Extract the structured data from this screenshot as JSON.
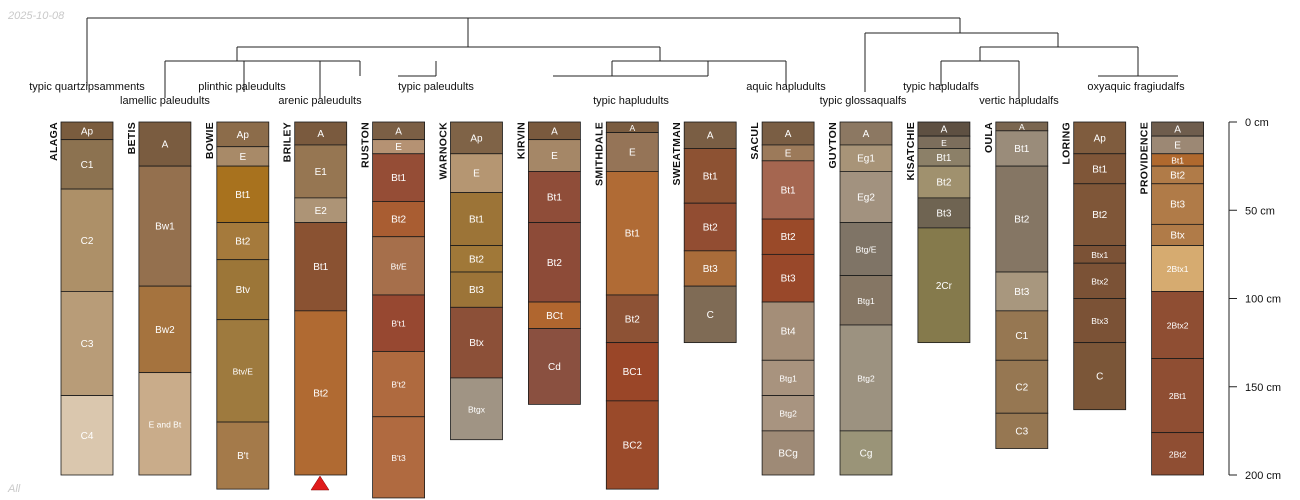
{
  "date_stamp": "2025-10-08",
  "corner_label": "All",
  "axis": {
    "ticks": [
      0,
      50,
      100,
      150,
      200
    ],
    "unit": "cm",
    "max_depth": 200
  },
  "groups": [
    {
      "label": "typic quartzipsamments"
    },
    {
      "label": "lamellic paleudults"
    },
    {
      "label": "plinthic paleudults"
    },
    {
      "label": "arenic paleudults"
    },
    {
      "label": "typic paleudults"
    },
    {
      "label": "typic hapludults"
    },
    {
      "label": "aquic hapludults"
    },
    {
      "label": "typic glossaqualfs"
    },
    {
      "label": "typic hapludalfs"
    },
    {
      "label": "vertic hapludalfs"
    },
    {
      "label": "oxyaquic fragiudalfs"
    }
  ],
  "profiles": [
    {
      "name": "ALAGA",
      "horizons": [
        {
          "name": "Ap",
          "top": 0,
          "bottom": 10,
          "color": "#7a5c3e"
        },
        {
          "name": "C1",
          "top": 10,
          "bottom": 38,
          "color": "#8c7250"
        },
        {
          "name": "C2",
          "top": 38,
          "bottom": 96,
          "color": "#ad9068"
        },
        {
          "name": "C3",
          "top": 96,
          "bottom": 155,
          "color": "#b89c78"
        },
        {
          "name": "C4",
          "top": 155,
          "bottom": 200,
          "color": "#dac7ae"
        }
      ]
    },
    {
      "name": "BETIS",
      "horizons": [
        {
          "name": "A",
          "top": 0,
          "bottom": 25,
          "color": "#7a5c40"
        },
        {
          "name": "Bw1",
          "top": 25,
          "bottom": 93,
          "color": "#94704e"
        },
        {
          "name": "Bw2",
          "top": 93,
          "bottom": 142,
          "color": "#a5733e"
        },
        {
          "name": "E and Bt",
          "top": 142,
          "bottom": 200,
          "color": "#c9ac8a"
        }
      ]
    },
    {
      "name": "BOWIE",
      "horizons": [
        {
          "name": "Ap",
          "top": 0,
          "bottom": 14,
          "color": "#8c6c4a"
        },
        {
          "name": "E",
          "top": 14,
          "bottom": 25,
          "color": "#a88a68"
        },
        {
          "name": "Bt1",
          "top": 25,
          "bottom": 57,
          "color": "#a8721e"
        },
        {
          "name": "Bt2",
          "top": 57,
          "bottom": 78,
          "color": "#a57a3c"
        },
        {
          "name": "Btv",
          "top": 78,
          "bottom": 112,
          "color": "#9c7638"
        },
        {
          "name": "Btv/E",
          "top": 112,
          "bottom": 170,
          "color": "#9e7a3e"
        },
        {
          "name": "B't",
          "top": 170,
          "bottom": 208,
          "color": "#a47a4a"
        }
      ]
    },
    {
      "name": "BRILEY",
      "horizons": [
        {
          "name": "A",
          "top": 0,
          "bottom": 13,
          "color": "#7a5a3e"
        },
        {
          "name": "E1",
          "top": 13,
          "bottom": 43,
          "color": "#967652"
        },
        {
          "name": "E2",
          "top": 43,
          "bottom": 57,
          "color": "#ad9476"
        },
        {
          "name": "Bt1",
          "top": 57,
          "bottom": 107,
          "color": "#8a5232"
        },
        {
          "name": "Bt2",
          "top": 107,
          "bottom": 200,
          "color": "#b06a32"
        }
      ]
    },
    {
      "name": "RUSTON",
      "horizons": [
        {
          "name": "A",
          "top": 0,
          "bottom": 10,
          "color": "#7b5f45"
        },
        {
          "name": "E",
          "top": 10,
          "bottom": 18,
          "color": "#b59273"
        },
        {
          "name": "Bt1",
          "top": 18,
          "bottom": 45,
          "color": "#954d36"
        },
        {
          "name": "Bt2",
          "top": 45,
          "bottom": 65,
          "color": "#a95d32"
        },
        {
          "name": "Bt/E",
          "top": 65,
          "bottom": 98,
          "color": "#a66f4b"
        },
        {
          "name": "B't1",
          "top": 98,
          "bottom": 130,
          "color": "#974831"
        },
        {
          "name": "B't2",
          "top": 130,
          "bottom": 167,
          "color": "#af6a3f"
        },
        {
          "name": "B't3",
          "top": 167,
          "bottom": 213,
          "color": "#b06a40"
        }
      ]
    },
    {
      "name": "WARNOCK",
      "horizons": [
        {
          "name": "Ap",
          "top": 0,
          "bottom": 18,
          "color": "#7f6347"
        },
        {
          "name": "E",
          "top": 18,
          "bottom": 40,
          "color": "#b59672"
        },
        {
          "name": "Bt1",
          "top": 40,
          "bottom": 70,
          "color": "#9c7437"
        },
        {
          "name": "Bt2",
          "top": 70,
          "bottom": 85,
          "color": "#a07838"
        },
        {
          "name": "Bt3",
          "top": 85,
          "bottom": 105,
          "color": "#9c7438"
        },
        {
          "name": "Btx",
          "top": 105,
          "bottom": 145,
          "color": "#8c5038"
        },
        {
          "name": "Btgx",
          "top": 145,
          "bottom": 180,
          "color": "#a09484"
        }
      ]
    },
    {
      "name": "KIRVIN",
      "horizons": [
        {
          "name": "A",
          "top": 0,
          "bottom": 10,
          "color": "#7a5a3e"
        },
        {
          "name": "E",
          "top": 10,
          "bottom": 28,
          "color": "#a58767"
        },
        {
          "name": "Bt1",
          "top": 28,
          "bottom": 57,
          "color": "#8f4d39"
        },
        {
          "name": "Bt2",
          "top": 57,
          "bottom": 102,
          "color": "#8d4b38"
        },
        {
          "name": "BCt",
          "top": 102,
          "bottom": 117,
          "color": "#b0662f"
        },
        {
          "name": "Cd",
          "top": 117,
          "bottom": 160,
          "color": "#8a5040"
        }
      ]
    },
    {
      "name": "SMITHDALE",
      "horizons": [
        {
          "name": "A",
          "top": 0,
          "bottom": 6,
          "color": "#7a5c40"
        },
        {
          "name": "E",
          "top": 6,
          "bottom": 28,
          "color": "#957457"
        },
        {
          "name": "Bt1",
          "top": 28,
          "bottom": 98,
          "color": "#b06b35"
        },
        {
          "name": "Bt2",
          "top": 98,
          "bottom": 125,
          "color": "#8d5235"
        },
        {
          "name": "BC1",
          "top": 125,
          "bottom": 158,
          "color": "#9a4628"
        },
        {
          "name": "BC2",
          "top": 158,
          "bottom": 208,
          "color": "#9a4a2a"
        }
      ]
    },
    {
      "name": "SWEATMAN",
      "horizons": [
        {
          "name": "A",
          "top": 0,
          "bottom": 15,
          "color": "#7a5e44"
        },
        {
          "name": "Bt1",
          "top": 15,
          "bottom": 46,
          "color": "#8d5233"
        },
        {
          "name": "Bt2",
          "top": 46,
          "bottom": 73,
          "color": "#924d32"
        },
        {
          "name": "Bt3",
          "top": 73,
          "bottom": 93,
          "color": "#a96c3a"
        },
        {
          "name": "C",
          "top": 93,
          "bottom": 125,
          "color": "#7f6b55"
        }
      ]
    },
    {
      "name": "SACUL",
      "horizons": [
        {
          "name": "A",
          "top": 0,
          "bottom": 13,
          "color": "#7a5e44"
        },
        {
          "name": "E",
          "top": 13,
          "bottom": 22,
          "color": "#9c7a5a"
        },
        {
          "name": "Bt1",
          "top": 22,
          "bottom": 55,
          "color": "#a56650"
        },
        {
          "name": "Bt2",
          "top": 55,
          "bottom": 75,
          "color": "#9a4a29"
        },
        {
          "name": "Bt3",
          "top": 75,
          "bottom": 102,
          "color": "#99482a"
        },
        {
          "name": "Bt4",
          "top": 102,
          "bottom": 135,
          "color": "#a48e78"
        },
        {
          "name": "Btg1",
          "top": 135,
          "bottom": 155,
          "color": "#a8937e"
        },
        {
          "name": "Btg2",
          "top": 155,
          "bottom": 175,
          "color": "#a89480"
        },
        {
          "name": "BCg",
          "top": 175,
          "bottom": 200,
          "color": "#9e8a76"
        }
      ]
    },
    {
      "name": "GUYTON",
      "horizons": [
        {
          "name": "A",
          "top": 0,
          "bottom": 13,
          "color": "#8c7862"
        },
        {
          "name": "Eg1",
          "top": 13,
          "bottom": 28,
          "color": "#a89478"
        },
        {
          "name": "Eg2",
          "top": 28,
          "bottom": 57,
          "color": "#a2927f"
        },
        {
          "name": "Btg/E",
          "top": 57,
          "bottom": 87,
          "color": "#7f7466"
        },
        {
          "name": "Btg1",
          "top": 87,
          "bottom": 115,
          "color": "#857664"
        },
        {
          "name": "Btg2",
          "top": 115,
          "bottom": 175,
          "color": "#9c9280"
        },
        {
          "name": "Cg",
          "top": 175,
          "bottom": 200,
          "color": "#9a9478"
        }
      ]
    },
    {
      "name": "KISATCHIE",
      "horizons": [
        {
          "name": "A",
          "top": 0,
          "bottom": 8,
          "color": "#5e5042"
        },
        {
          "name": "E",
          "top": 8,
          "bottom": 15,
          "color": "#7c6e5c"
        },
        {
          "name": "Bt1",
          "top": 15,
          "bottom": 25,
          "color": "#8c8068"
        },
        {
          "name": "Bt2",
          "top": 25,
          "bottom": 43,
          "color": "#a0916e"
        },
        {
          "name": "Bt3",
          "top": 43,
          "bottom": 60,
          "color": "#6f6452"
        },
        {
          "name": "2Cr",
          "top": 60,
          "bottom": 125,
          "color": "#857a4c"
        }
      ]
    },
    {
      "name": "OULA",
      "horizons": [
        {
          "name": "A",
          "top": 0,
          "bottom": 5,
          "color": "#7a6650"
        },
        {
          "name": "Bt1",
          "top": 5,
          "bottom": 25,
          "color": "#9a8c7a"
        },
        {
          "name": "Bt2",
          "top": 25,
          "bottom": 85,
          "color": "#857664"
        },
        {
          "name": "Bt3",
          "top": 85,
          "bottom": 107,
          "color": "#a8977e"
        },
        {
          "name": "C1",
          "top": 107,
          "bottom": 135,
          "color": "#967752"
        },
        {
          "name": "C2",
          "top": 135,
          "bottom": 165,
          "color": "#967752"
        },
        {
          "name": "C3",
          "top": 165,
          "bottom": 185,
          "color": "#967752"
        }
      ]
    },
    {
      "name": "LORING",
      "horizons": [
        {
          "name": "Ap",
          "top": 0,
          "bottom": 18,
          "color": "#7f5c3e"
        },
        {
          "name": "Bt1",
          "top": 18,
          "bottom": 35,
          "color": "#7f5638"
        },
        {
          "name": "Bt2",
          "top": 35,
          "bottom": 70,
          "color": "#7f5638"
        },
        {
          "name": "Btx1",
          "top": 70,
          "bottom": 80,
          "color": "#7b5236"
        },
        {
          "name": "Btx2",
          "top": 80,
          "bottom": 100,
          "color": "#7b5236"
        },
        {
          "name": "Btx3",
          "top": 100,
          "bottom": 125,
          "color": "#7b5236"
        },
        {
          "name": "C",
          "top": 125,
          "bottom": 163,
          "color": "#7b5638"
        }
      ]
    },
    {
      "name": "PROVIDENCE",
      "horizons": [
        {
          "name": "A",
          "top": 0,
          "bottom": 8,
          "color": "#6f5d4d"
        },
        {
          "name": "E",
          "top": 8,
          "bottom": 18,
          "color": "#9c8874"
        },
        {
          "name": "Bt1",
          "top": 18,
          "bottom": 25,
          "color": "#b0692e"
        },
        {
          "name": "Bt2",
          "top": 25,
          "bottom": 35,
          "color": "#b07b48"
        },
        {
          "name": "Bt3",
          "top": 35,
          "bottom": 58,
          "color": "#b07b48"
        },
        {
          "name": "Btx",
          "top": 58,
          "bottom": 70,
          "color": "#b07b48"
        },
        {
          "name": "2Btx1",
          "top": 70,
          "bottom": 96,
          "color": "#d6ab70"
        },
        {
          "name": "2Btx2",
          "top": 96,
          "bottom": 134,
          "color": "#8f4e33"
        },
        {
          "name": "2Bt1",
          "top": 134,
          "bottom": 176,
          "color": "#8f4e33"
        },
        {
          "name": "2Bt2",
          "top": 176,
          "bottom": 200,
          "color": "#8f4e33"
        }
      ]
    }
  ]
}
